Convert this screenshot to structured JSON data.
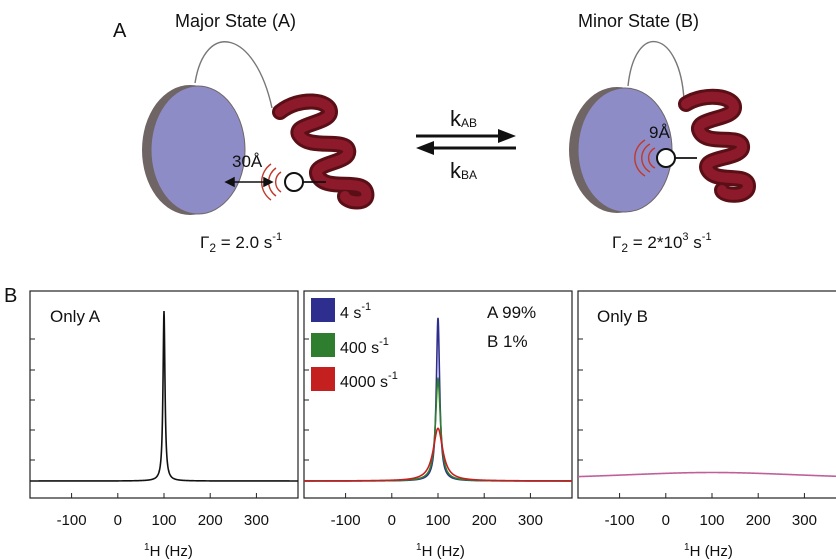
{
  "figure": {
    "panel_a_label": "A",
    "panel_b_label": "B",
    "major_state": {
      "title": "Major State (A)",
      "distance": "30Å",
      "gamma_prefix": "Γ",
      "gamma_sub": "2",
      "gamma_value": " = 2.0 s",
      "gamma_exp": "-1"
    },
    "minor_state": {
      "title": "Minor State (B)",
      "distance": "9Å",
      "gamma_prefix": "Γ",
      "gamma_sub": "2",
      "gamma_value": " = 2*10",
      "gamma_exp1": "3",
      "gamma_unit": " s",
      "gamma_exp2": "-1"
    },
    "rates": {
      "forward_k": "k",
      "forward_sub": "AB",
      "reverse_k": "k",
      "reverse_sub": "BA"
    }
  },
  "chart_data": [
    {
      "type": "line",
      "title": "Only A",
      "xlabel_sup": "1",
      "xlabel": "H (Hz)",
      "xticks": [
        -100,
        0,
        100,
        200,
        300
      ],
      "xlim": [
        -190,
        390
      ],
      "series": [
        {
          "center": 100,
          "linewidth_hz": 5.1,
          "amplitude": 1.0,
          "color": "#111111"
        }
      ]
    },
    {
      "type": "line",
      "xlabel_sup": "1",
      "xlabel": "H (Hz)",
      "xticks": [
        -100,
        0,
        100,
        200,
        300
      ],
      "xlim": [
        -190,
        390
      ],
      "annotation": [
        "A 99%",
        "B 1%"
      ],
      "legend": {
        "position": "top-left",
        "entries": [
          {
            "base": "4 s",
            "sup": "-1",
            "color": "#2e2e8f"
          },
          {
            "base": "400 s",
            "sup": "-1",
            "color": "#2f7d2f"
          },
          {
            "base": "4000 s",
            "sup": "-1",
            "color": "#c42020"
          }
        ]
      },
      "series": [
        {
          "center": 100,
          "linewidth_hz": 8.7,
          "amplitude": 0.96,
          "color": "#2e2e8f"
        },
        {
          "center": 100,
          "linewidth_hz": 13,
          "amplitude": 0.6,
          "color": "#2f7d2f"
        },
        {
          "center": 100,
          "linewidth_hz": 25,
          "amplitude": 0.31,
          "color": "#c42020"
        }
      ]
    },
    {
      "type": "line",
      "title": "Only B",
      "xlabel_sup": "1",
      "xlabel": "H (Hz)",
      "xticks": [
        -100,
        0,
        100,
        200,
        300
      ],
      "xlim": [
        -190,
        390
      ],
      "series": [
        {
          "center": 100,
          "linewidth_hz": 600,
          "amplitude": 0.05,
          "color": "#c0609a"
        }
      ]
    }
  ]
}
